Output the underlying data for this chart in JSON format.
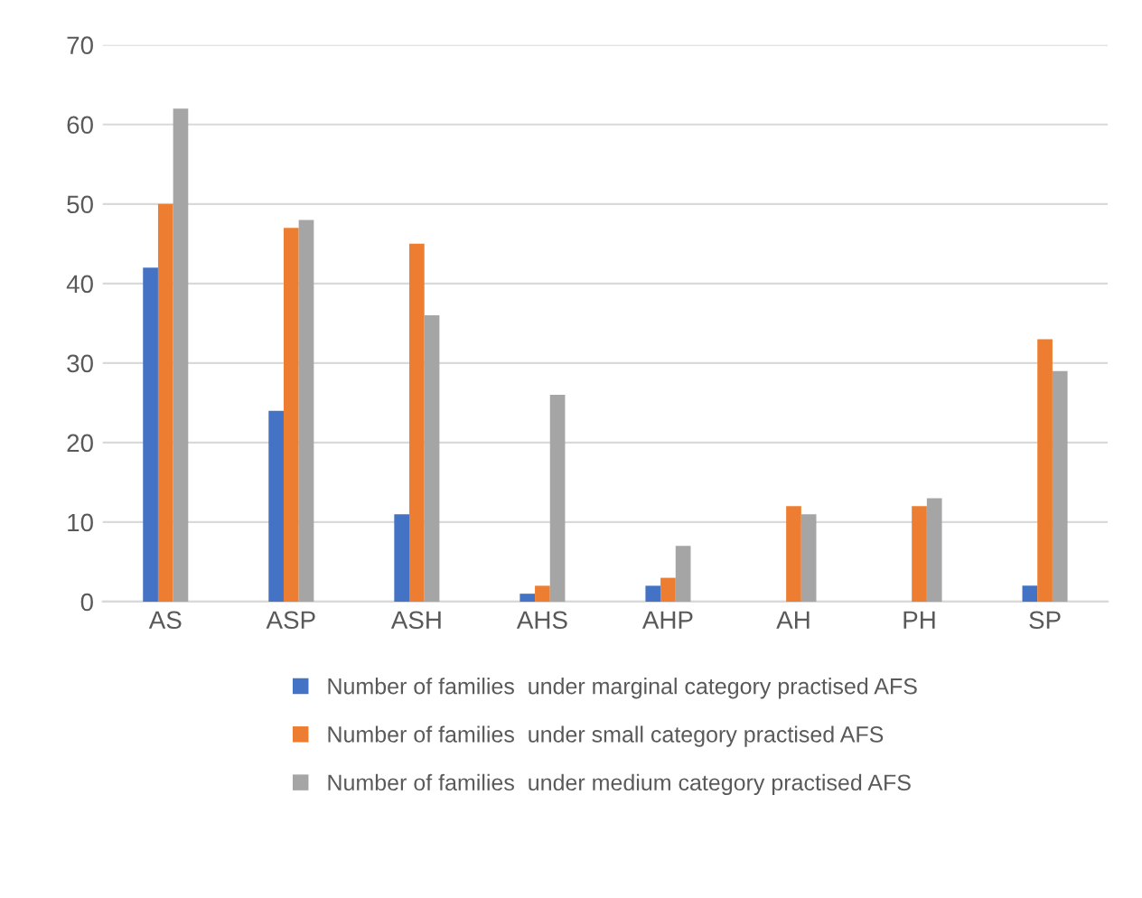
{
  "chart_data": {
    "type": "bar",
    "categories": [
      "AS",
      "ASP",
      "ASH",
      "AHS",
      "AHP",
      "AH",
      "PH",
      "SP"
    ],
    "series": [
      {
        "name": "Number of families  under marginal category practised AFS",
        "color": "#4472c4",
        "values": [
          42,
          24,
          11,
          1,
          2,
          0,
          0,
          2
        ]
      },
      {
        "name": "Number of families  under small category practised AFS",
        "color": "#ed7d31",
        "values": [
          50,
          47,
          45,
          2,
          3,
          12,
          12,
          33
        ]
      },
      {
        "name": "Number of families  under medium category practised AFS",
        "color": "#a5a5a5",
        "values": [
          62,
          48,
          36,
          26,
          7,
          11,
          13,
          29
        ]
      }
    ],
    "ylim": [
      0,
      70
    ],
    "yticks": [
      0,
      10,
      20,
      30,
      40,
      50,
      60,
      70
    ],
    "grid": "y",
    "legend": "bottom"
  }
}
